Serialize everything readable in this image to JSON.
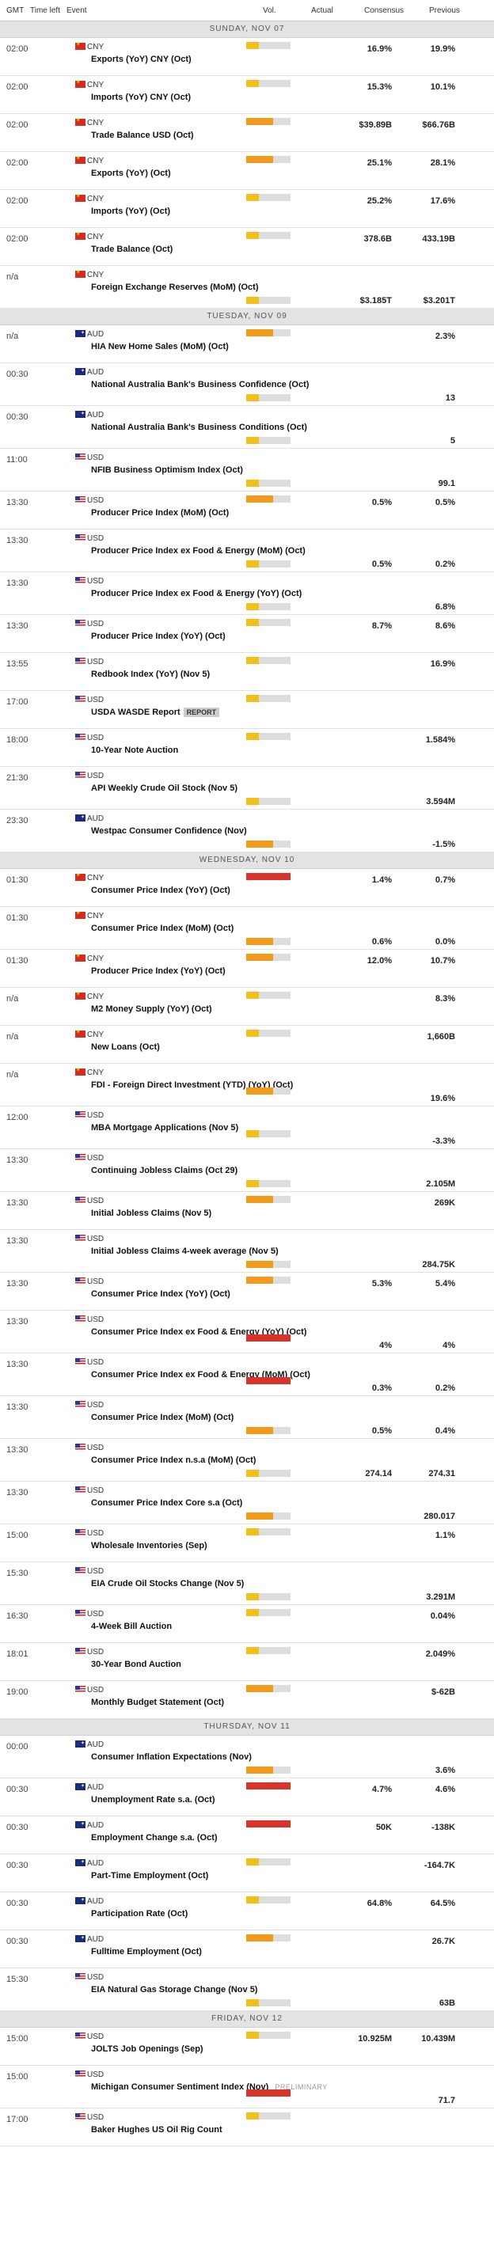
{
  "header": {
    "gmt": "GMT",
    "time_left": "Time left",
    "event": "Event",
    "vol": "Vol.",
    "actual": "Actual",
    "consensus": "Consensus",
    "previous": "Previous"
  },
  "colors": {
    "low": "#f2c01b",
    "medium": "#f29a1b",
    "high": "#d9342b",
    "track": "#dddddd"
  },
  "days": [
    {
      "label": "SUNDAY, NOV 07",
      "rows": [
        {
          "time": "02:00",
          "cur": "CNY",
          "event": "Exports (YoY) CNY (Oct)",
          "vol": 1,
          "cons": "16.9%",
          "prev": "19.9%",
          "vpos": "top",
          "vals": "top"
        },
        {
          "time": "02:00",
          "cur": "CNY",
          "event": "Imports (YoY) CNY (Oct)",
          "vol": 1,
          "cons": "15.3%",
          "prev": "10.1%",
          "vpos": "top",
          "vals": "top"
        },
        {
          "time": "02:00",
          "cur": "CNY",
          "event": "Trade Balance USD (Oct)",
          "vol": 2,
          "cons": "$39.89B",
          "prev": "$66.76B",
          "vpos": "top",
          "vals": "top"
        },
        {
          "time": "02:00",
          "cur": "CNY",
          "event": "Exports (YoY) (Oct)",
          "vol": 2,
          "cons": "25.1%",
          "prev": "28.1%",
          "vpos": "top",
          "vals": "top"
        },
        {
          "time": "02:00",
          "cur": "CNY",
          "event": "Imports (YoY) (Oct)",
          "vol": 1,
          "cons": "25.2%",
          "prev": "17.6%",
          "vpos": "top",
          "vals": "top"
        },
        {
          "time": "02:00",
          "cur": "CNY",
          "event": "Trade Balance (Oct)",
          "vol": 1,
          "cons": "378.6B",
          "prev": "433.19B",
          "vpos": "top",
          "vals": "top"
        },
        {
          "time": "n/a",
          "cur": "CNY",
          "event": "Foreign Exchange Reserves (MoM) (Oct)",
          "vol": 1,
          "cons": "$3.185T",
          "prev": "$3.201T",
          "vpos": "bottom",
          "vals": "bottom",
          "tall": 1
        }
      ]
    },
    {
      "label": "TUESDAY, NOV 09",
      "rows": [
        {
          "time": "n/a",
          "cur": "AUD",
          "event": "HIA New Home Sales (MoM) (Oct)",
          "vol": 2,
          "cons": "",
          "prev": "2.3%",
          "vpos": "top",
          "vals": "top"
        },
        {
          "time": "00:30",
          "cur": "AUD",
          "event": "National Australia Bank's Business Confidence (Oct)",
          "vol": 1,
          "cons": "",
          "prev": "13",
          "vpos": "bottom",
          "vals": "bottom",
          "tall": 1
        },
        {
          "time": "00:30",
          "cur": "AUD",
          "event": "National Australia Bank's Business Conditions (Oct)",
          "vol": 1,
          "cons": "",
          "prev": "5",
          "vpos": "bottom",
          "vals": "bottom",
          "tall": 1
        },
        {
          "time": "11:00",
          "cur": "USD",
          "event": "NFIB Business Optimism Index (Oct)",
          "vol": 1,
          "cons": "",
          "prev": "99.1",
          "vpos": "bottom",
          "vals": "bottom",
          "tall": 1
        },
        {
          "time": "13:30",
          "cur": "USD",
          "event": "Producer Price Index (MoM) (Oct)",
          "vol": 2,
          "cons": "0.5%",
          "prev": "0.5%",
          "vpos": "top",
          "vals": "top"
        },
        {
          "time": "13:30",
          "cur": "USD",
          "event": "Producer Price Index ex Food & Energy (MoM) (Oct)",
          "vol": 1,
          "cons": "0.5%",
          "prev": "0.2%",
          "vpos": "bottom",
          "vals": "bottom",
          "tall": 1
        },
        {
          "time": "13:30",
          "cur": "USD",
          "event": "Producer Price Index ex Food & Energy (YoY) (Oct)",
          "vol": 1,
          "cons": "",
          "prev": "6.8%",
          "vpos": "bottom",
          "vals": "bottom",
          "tall": 1
        },
        {
          "time": "13:30",
          "cur": "USD",
          "event": "Producer Price Index (YoY) (Oct)",
          "vol": 1,
          "cons": "8.7%",
          "prev": "8.6%",
          "vpos": "top",
          "vals": "top"
        },
        {
          "time": "13:55",
          "cur": "USD",
          "event": "Redbook Index (YoY) (Nov 5)",
          "vol": 1,
          "cons": "",
          "prev": "16.9%",
          "vpos": "top",
          "vals": "top"
        },
        {
          "time": "17:00",
          "cur": "USD",
          "event": "USDA WASDE Report",
          "tag": "REPORT",
          "vol": 1,
          "cons": "",
          "prev": "",
          "vpos": "top",
          "vals": "top"
        },
        {
          "time": "18:00",
          "cur": "USD",
          "event": "10-Year Note Auction",
          "vol": 1,
          "cons": "",
          "prev": "1.584%",
          "vpos": "top",
          "vals": "top"
        },
        {
          "time": "21:30",
          "cur": "USD",
          "event": "API Weekly Crude Oil Stock (Nov 5)",
          "vol": 1,
          "cons": "",
          "prev": "3.594M",
          "vpos": "bottom",
          "vals": "bottom",
          "tall": 1
        },
        {
          "time": "23:30",
          "cur": "AUD",
          "event": "Westpac Consumer Confidence (Nov)",
          "vol": 2,
          "cons": "",
          "prev": "-1.5%",
          "vpos": "bottom",
          "vals": "bottom",
          "tall": 1
        }
      ]
    },
    {
      "label": "WEDNESDAY, NOV 10",
      "rows": [
        {
          "time": "01:30",
          "cur": "CNY",
          "event": "Consumer Price Index (YoY) (Oct)",
          "vol": 3,
          "cons": "1.4%",
          "prev": "0.7%",
          "vpos": "top",
          "vals": "top"
        },
        {
          "time": "01:30",
          "cur": "CNY",
          "event": "Consumer Price Index (MoM) (Oct)",
          "vol": 2,
          "cons": "0.6%",
          "prev": "0.0%",
          "vpos": "bottom",
          "vals": "bottom",
          "tall": 1
        },
        {
          "time": "01:30",
          "cur": "CNY",
          "event": "Producer Price Index (YoY) (Oct)",
          "vol": 2,
          "cons": "12.0%",
          "prev": "10.7%",
          "vpos": "top",
          "vals": "top"
        },
        {
          "time": "n/a",
          "cur": "CNY",
          "event": "M2 Money Supply (YoY) (Oct)",
          "vol": 1,
          "cons": "",
          "prev": "8.3%",
          "vpos": "top",
          "vals": "top"
        },
        {
          "time": "n/a",
          "cur": "CNY",
          "event": "New Loans (Oct)",
          "vol": 1,
          "cons": "",
          "prev": "1,660B",
          "vpos": "top",
          "vals": "top"
        },
        {
          "time": "n/a",
          "cur": "CNY",
          "event": "FDI - Foreign Direct Investment (YTD) (YoY) (Oct)",
          "vol": 2,
          "cons": "",
          "prev": "19.6%",
          "vpos": "mid",
          "vals": "bottom",
          "tall": 1
        },
        {
          "time": "12:00",
          "cur": "USD",
          "event": "MBA Mortgage Applications (Nov 5)",
          "vol": 1,
          "cons": "",
          "prev": "-3.3%",
          "vpos": "mid",
          "vals": "bottom",
          "tall": 1
        },
        {
          "time": "13:30",
          "cur": "USD",
          "event": "Continuing Jobless Claims (Oct 29)",
          "vol": 1,
          "cons": "",
          "prev": "2.105M",
          "vpos": "bottom",
          "vals": "bottom",
          "tall": 1
        },
        {
          "time": "13:30",
          "cur": "USD",
          "event": "Initial Jobless Claims (Nov 5)",
          "vol": 2,
          "cons": "",
          "prev": "269K",
          "vpos": "top",
          "vals": "top"
        },
        {
          "time": "13:30",
          "cur": "USD",
          "event": "Initial Jobless Claims 4-week average (Nov 5)",
          "vol": 2,
          "cons": "",
          "prev": "284.75K",
          "vpos": "bottom",
          "vals": "bottom",
          "tall": 1
        },
        {
          "time": "13:30",
          "cur": "USD",
          "event": "Consumer Price Index (YoY) (Oct)",
          "vol": 2,
          "cons": "5.3%",
          "prev": "5.4%",
          "vpos": "top",
          "vals": "top"
        },
        {
          "time": "13:30",
          "cur": "USD",
          "event": "Consumer Price Index ex Food & Energy (YoY) (Oct)",
          "vol": 3,
          "cons": "4%",
          "prev": "4%",
          "vpos": "mid",
          "vals": "bottom",
          "tall": 1
        },
        {
          "time": "13:30",
          "cur": "USD",
          "event": "Consumer Price Index ex Food & Energy (MoM) (Oct)",
          "vol": 3,
          "cons": "0.3%",
          "prev": "0.2%",
          "vpos": "mid",
          "vals": "bottom",
          "tall": 1
        },
        {
          "time": "13:30",
          "cur": "USD",
          "event": "Consumer Price Index (MoM) (Oct)",
          "vol": 2,
          "cons": "0.5%",
          "prev": "0.4%",
          "vpos": "bottom",
          "vals": "bottom",
          "tall": 1
        },
        {
          "time": "13:30",
          "cur": "USD",
          "event": "Consumer Price Index n.s.a (MoM) (Oct)",
          "vol": 1,
          "cons": "274.14",
          "prev": "274.31",
          "vpos": "bottom",
          "vals": "bottom",
          "tall": 1
        },
        {
          "time": "13:30",
          "cur": "USD",
          "event": "Consumer Price Index Core s.a (Oct)",
          "vol": 2,
          "cons": "",
          "prev": "280.017",
          "vpos": "bottom",
          "vals": "bottom",
          "tall": 1
        },
        {
          "time": "15:00",
          "cur": "USD",
          "event": "Wholesale Inventories (Sep)",
          "vol": 1,
          "cons": "",
          "prev": "1.1%",
          "vpos": "top",
          "vals": "top"
        },
        {
          "time": "15:30",
          "cur": "USD",
          "event": "EIA Crude Oil Stocks Change (Nov 5)",
          "vol": 1,
          "cons": "",
          "prev": "3.291M",
          "vpos": "bottom",
          "vals": "bottom",
          "tall": 1
        },
        {
          "time": "16:30",
          "cur": "USD",
          "event": "4-Week Bill Auction",
          "vol": 1,
          "cons": "",
          "prev": "0.04%",
          "vpos": "top",
          "vals": "top"
        },
        {
          "time": "18:01",
          "cur": "USD",
          "event": "30-Year Bond Auction",
          "vol": 1,
          "cons": "",
          "prev": "2.049%",
          "vpos": "top",
          "vals": "top"
        },
        {
          "time": "19:00",
          "cur": "USD",
          "event": "Monthly Budget Statement (Oct)",
          "vol": 2,
          "cons": "",
          "prev": "$-62B",
          "vpos": "top",
          "vals": "top"
        }
      ]
    },
    {
      "label": "THURSDAY, NOV 11",
      "rows": [
        {
          "time": "00:00",
          "cur": "AUD",
          "event": "Consumer Inflation Expectations (Nov)",
          "vol": 2,
          "cons": "",
          "prev": "3.6%",
          "vpos": "bottom",
          "vals": "bottom",
          "tall": 1
        },
        {
          "time": "00:30",
          "cur": "AUD",
          "event": "Unemployment Rate s.a. (Oct)",
          "vol": 3,
          "cons": "4.7%",
          "prev": "4.6%",
          "vpos": "top",
          "vals": "top"
        },
        {
          "time": "00:30",
          "cur": "AUD",
          "event": "Employment Change s.a. (Oct)",
          "vol": 3,
          "cons": "50K",
          "prev": "-138K",
          "vpos": "top",
          "vals": "top"
        },
        {
          "time": "00:30",
          "cur": "AUD",
          "event": "Part-Time Employment (Oct)",
          "vol": 1,
          "cons": "",
          "prev": "-164.7K",
          "vpos": "top",
          "vals": "top"
        },
        {
          "time": "00:30",
          "cur": "AUD",
          "event": "Participation Rate (Oct)",
          "vol": 1,
          "cons": "64.8%",
          "prev": "64.5%",
          "vpos": "top",
          "vals": "top"
        },
        {
          "time": "00:30",
          "cur": "AUD",
          "event": "Fulltime Employment (Oct)",
          "vol": 2,
          "cons": "",
          "prev": "26.7K",
          "vpos": "top",
          "vals": "top"
        },
        {
          "time": "15:30",
          "cur": "USD",
          "event": "EIA Natural Gas Storage Change (Nov 5)",
          "vol": 1,
          "cons": "",
          "prev": "63B",
          "vpos": "bottom",
          "vals": "bottom",
          "tall": 1
        }
      ]
    },
    {
      "label": "FRIDAY, NOV 12",
      "rows": [
        {
          "time": "15:00",
          "cur": "USD",
          "event": "JOLTS Job Openings (Sep)",
          "vol": 1,
          "cons": "10.925M",
          "prev": "10.439M",
          "vpos": "top",
          "vals": "top"
        },
        {
          "time": "15:00",
          "cur": "USD",
          "event": "Michigan Consumer Sentiment Index (Nov)",
          "prelim": "PRELIMINARY",
          "vol": 3,
          "cons": "",
          "prev": "71.7",
          "vpos": "mid",
          "vals": "bottom",
          "tall": 1
        },
        {
          "time": "17:00",
          "cur": "USD",
          "event": "Baker Hughes US Oil Rig Count",
          "vol": 1,
          "cons": "",
          "prev": "",
          "vpos": "top",
          "vals": "top"
        }
      ]
    }
  ]
}
